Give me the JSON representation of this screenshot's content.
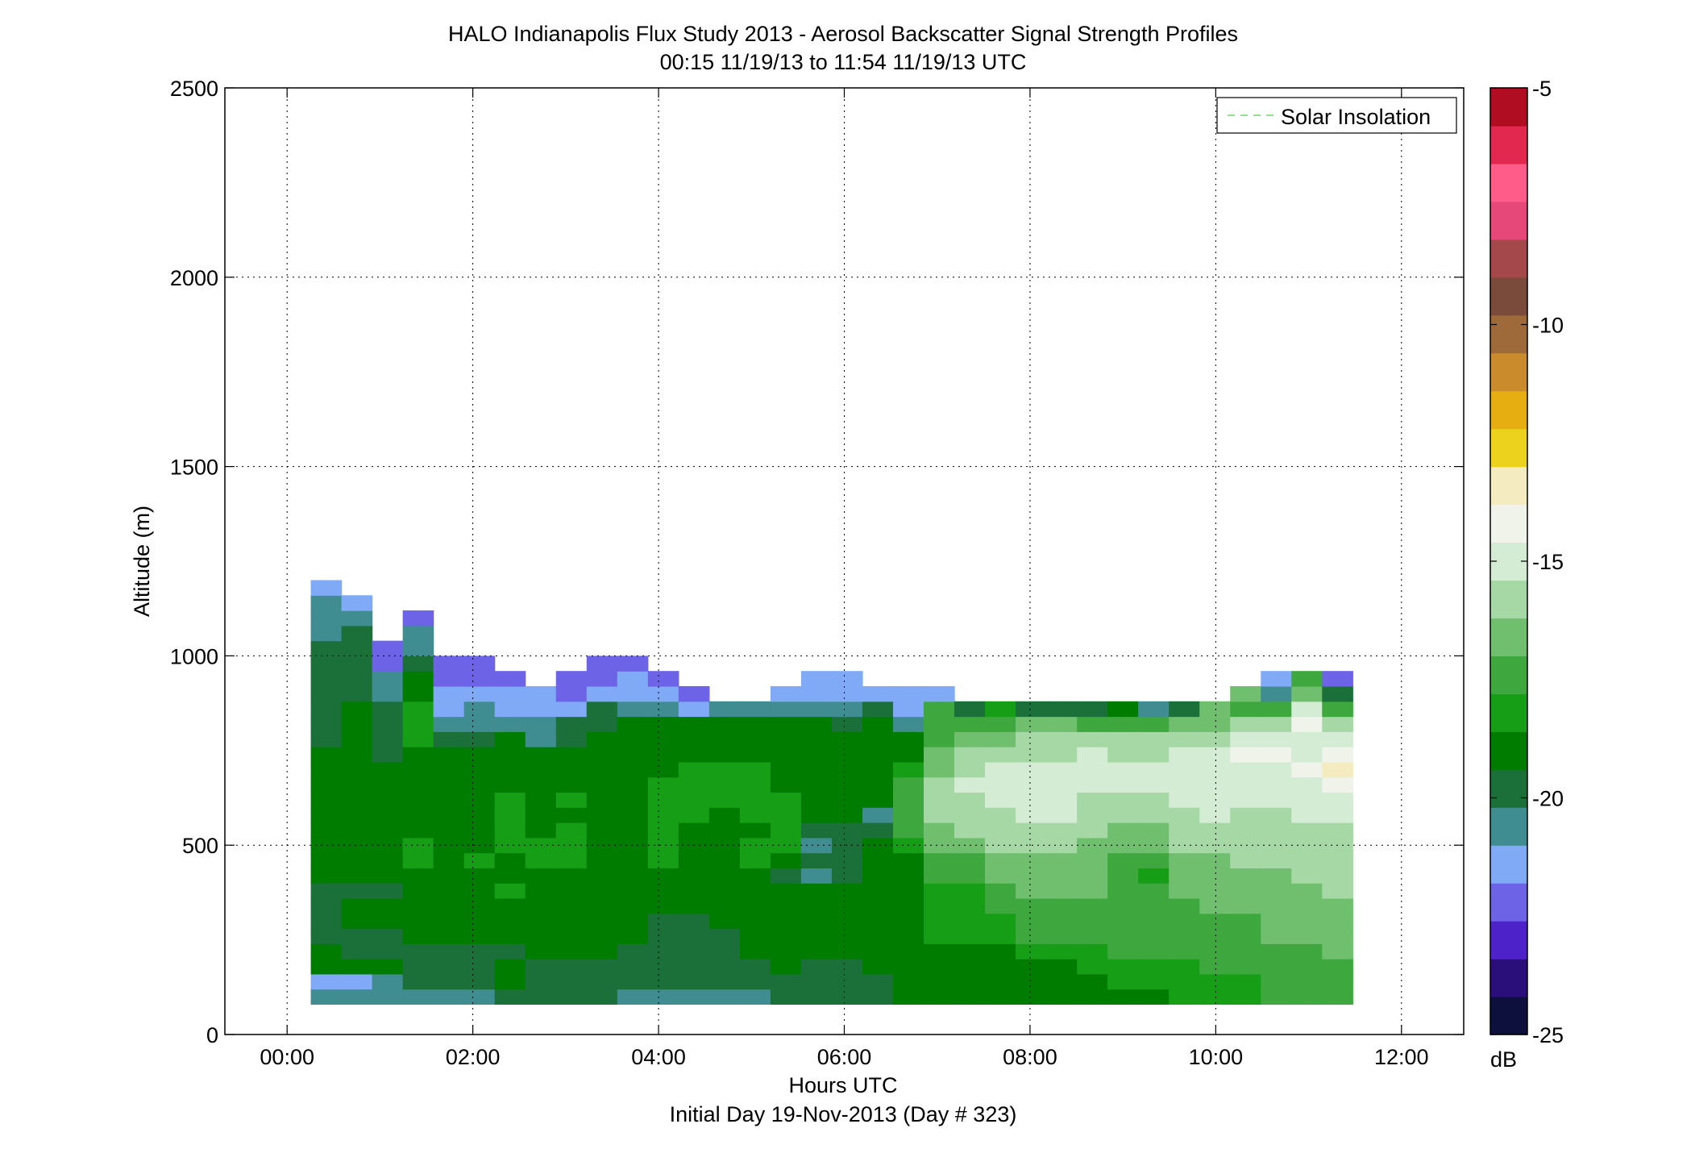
{
  "chart_data": {
    "type": "heatmap",
    "title": "HALO Indianapolis Flux Study 2013 - Aerosol Backscatter Signal Strength Profiles",
    "subtitle": "00:15 11/19/13 to 11:54 11/19/13  UTC",
    "xlabel": "Hours UTC",
    "xlabel2": "Initial Day 19-Nov-2013 (Day # 323)",
    "ylabel": "Altitude (m)",
    "xlim": [
      -0.67,
      12.67
    ],
    "ylim": [
      0,
      2500
    ],
    "x_ticks": [
      0,
      2,
      4,
      6,
      8,
      10,
      12
    ],
    "x_tick_labels": [
      "00:00",
      "02:00",
      "04:00",
      "06:00",
      "08:00",
      "10:00",
      "12:00"
    ],
    "y_ticks": [
      0,
      500,
      1000,
      1500,
      2000,
      2500
    ],
    "y_tick_labels": [
      "0",
      "500",
      "1000",
      "1500",
      "2000",
      "2500"
    ],
    "grid": true,
    "legend": {
      "position": "top-right",
      "entries": [
        "Solar Insolation"
      ],
      "line_color": "#8ae88a"
    },
    "colorbar": {
      "label": "dB",
      "range": [
        -25,
        -5
      ],
      "ticks": [
        -25,
        -20,
        -15,
        -10,
        -5
      ],
      "tick_labels": [
        "-25",
        "-20",
        "-15",
        "-10",
        "-5"
      ],
      "colors": [
        "#0d0f3c",
        "#2a0f7a",
        "#4d22c8",
        "#6c63e6",
        "#80aaf6",
        "#3f8d90",
        "#1a7038",
        "#007d00",
        "#169e16",
        "#3ea83e",
        "#6fbf6f",
        "#a6d8a6",
        "#d4ebd4",
        "#eff3ea",
        "#f4ecc0",
        "#ecd21c",
        "#e6ae10",
        "#c98b2c",
        "#9e6a3a",
        "#7a4a3a",
        "#a4484c",
        "#e6487a",
        "#ff5c8a",
        "#e2284e",
        "#b00d22"
      ]
    },
    "time_bin_hours": 0.33,
    "first_bin_center_hours": 0.42,
    "altitude_bin_m": 40,
    "first_altitude_bin_center_m": 100,
    "top_altitudes_m": [
      1300,
      1260,
      1180,
      1220,
      1180,
      1180,
      1140,
      1100,
      1140,
      1140,
      1140,
      1070,
      960,
      880,
      840,
      800,
      800,
      800,
      760,
      760,
      800,
      800,
      800,
      800,
      760,
      760,
      800,
      800,
      760,
      720,
      760,
      760,
      800,
      800
    ],
    "profiles_db": [
      [
        -20.8,
        -21.2,
        -19.2,
        -19.0,
        -19.6,
        -19.6,
        -19.6,
        -20.0,
        -19.4,
        -19.0,
        -19.4,
        -19.0,
        -19.0,
        -19.0,
        -19.0,
        -19.0,
        -19.4,
        -19.6,
        -19.6,
        -19.6,
        -20.0,
        -20.2,
        -20.2,
        -20.2,
        -20.4,
        -20.6,
        -21.0,
        -21.2
      ],
      [
        -20.8,
        -21.2,
        -19.4,
        -20.0,
        -19.6,
        -19.2,
        -19.2,
        -19.8,
        -19.4,
        -19.0,
        -19.4,
        -19.0,
        -19.0,
        -19.0,
        -19.0,
        -19.0,
        -19.0,
        -19.2,
        -19.2,
        -19.4,
        -19.6,
        -19.6,
        -19.8,
        -19.6,
        -20.0,
        -20.6,
        -21.2
      ],
      [
        -20.6,
        -20.4,
        -19.2,
        -20.0,
        -19.6,
        -19.4,
        -19.4,
        -19.8,
        -19.2,
        -19.0,
        -19.0,
        -19.0,
        -19.0,
        -19.0,
        -19.0,
        -19.0,
        -19.6,
        -19.6,
        -19.6,
        -19.8,
        -20.6,
        -20.8,
        -21.8,
        -22.4
      ],
      [
        -20.6,
        -20.0,
        -19.8,
        -19.6,
        -19.2,
        -18.8,
        -18.6,
        -18.6,
        -18.8,
        -18.4,
        -18.4,
        -18.8,
        -19.0,
        -19.0,
        -18.8,
        -18.6,
        -18.6,
        -18.4,
        -18.4,
        -18.2,
        -19.0,
        -19.2,
        -19.6,
        -20.4,
        -20.6,
        -22.2
      ],
      [
        -20.6,
        -20.0,
        -19.8,
        -19.6,
        -19.4,
        -19.2,
        -19.2,
        -19.0,
        -18.8,
        -19.0,
        -18.8,
        -18.8,
        -19.0,
        -19.0,
        -19.0,
        -18.8,
        -19.0,
        -19.6,
        -20.8,
        -21.4,
        -21.6,
        -21.8,
        -21.8
      ],
      [
        -20.6,
        -19.8,
        -19.8,
        -19.6,
        -19.0,
        -19.0,
        -18.8,
        -18.8,
        -18.6,
        -18.4,
        -18.6,
        -18.8,
        -19.0,
        -19.0,
        -19.0,
        -19.0,
        -19.4,
        -20.0,
        -20.4,
        -20.6,
        -21.6,
        -21.8,
        -21.8
      ],
      [
        -20.0,
        -19.2,
        -19.0,
        -19.8,
        -19.4,
        -19.0,
        -18.8,
        -18.4,
        -18.6,
        -18.6,
        -18.4,
        -18.2,
        -18.2,
        -18.2,
        -18.6,
        -19.0,
        -19.2,
        -19.2,
        -21.0,
        -21.4,
        -21.6,
        -22.2
      ],
      [
        -19.6,
        -19.6,
        -19.6,
        -19.0,
        -19.0,
        -19.0,
        -19.0,
        -18.6,
        -18.8,
        -18.2,
        -18.4,
        -18.6,
        -18.8,
        -18.8,
        -18.8,
        -19.2,
        -19.0,
        -20.4,
        -21.0,
        -21.4,
        -21.6
      ],
      [
        -19.6,
        -19.6,
        -19.6,
        -19.2,
        -19.0,
        -19.0,
        -18.8,
        -18.6,
        -18.8,
        -18.2,
        -18.0,
        -18.4,
        -18.8,
        -18.4,
        -19.4,
        -18.8,
        -18.8,
        -19.6,
        -19.8,
        -21.6,
        -21.8,
        -22.2
      ],
      [
        -20.0,
        -19.6,
        -19.8,
        -19.2,
        -19.0,
        -19.0,
        -18.8,
        -18.8,
        -18.8,
        -18.8,
        -18.6,
        -18.8,
        -19.0,
        -19.0,
        -18.8,
        -19.0,
        -19.2,
        -19.2,
        -19.6,
        -20.2,
        -21.2,
        -21.8,
        -22.2
      ],
      [
        -20.6,
        -20.2,
        -20.0,
        -19.6,
        -19.2,
        -19.2,
        -19.0,
        -18.8,
        -18.8,
        -18.6,
        -18.6,
        -18.6,
        -18.8,
        -18.8,
        -18.8,
        -19.0,
        -19.2,
        -19.0,
        -19.0,
        -20.6,
        -21.2,
        -21.6,
        -22.2
      ],
      [
        -20.6,
        -19.6,
        -20.2,
        -19.8,
        -19.6,
        -19.6,
        -19.4,
        -19.4,
        -18.6,
        -18.4,
        -18.2,
        -18.0,
        -18.0,
        -18.0,
        -18.4,
        -18.6,
        -18.8,
        -19.0,
        -19.0,
        -20.8,
        -21.2,
        -22.0
      ],
      [
        -20.6,
        -19.6,
        -19.8,
        -19.8,
        -19.6,
        -19.6,
        -19.4,
        -19.2,
        -19.0,
        -19.0,
        -18.8,
        -18.6,
        -18.2,
        -18.2,
        -18.4,
        -18.4,
        -18.8,
        -19.0,
        -19.0,
        -21.2,
        -21.8
      ],
      [
        -20.6,
        -20.0,
        -19.6,
        -19.6,
        -19.6,
        -19.4,
        -19.4,
        -19.2,
        -19.0,
        -19.0,
        -18.8,
        -18.8,
        -18.8,
        -18.4,
        -18.4,
        -18.4,
        -19.0,
        -19.0,
        -19.0,
        -21.0
      ],
      [
        -20.6,
        -19.6,
        -19.6,
        -19.4,
        -19.4,
        -19.2,
        -19.0,
        -19.0,
        -18.8,
        -18.4,
        -18.4,
        -18.6,
        -18.4,
        -18.2,
        -18.2,
        -18.2,
        -18.8,
        -18.8,
        -18.8,
        -21.0
      ],
      [
        -19.6,
        -19.8,
        -19.4,
        -19.4,
        -19.2,
        -19.0,
        -19.0,
        -19.0,
        -20.2,
        -18.8,
        -18.4,
        -18.4,
        -18.2,
        -18.2,
        -18.6,
        -18.8,
        -19.0,
        -19.0,
        -19.2,
        -20.6,
        -21.6
      ],
      [
        -19.6,
        -19.8,
        -19.6,
        -19.4,
        -19.2,
        -19.0,
        -19.0,
        -19.0,
        -20.6,
        -19.6,
        -21.0,
        -20.0,
        -19.0,
        -18.8,
        -18.8,
        -19.0,
        -19.0,
        -19.0,
        -19.2,
        -20.8,
        -21.4,
        -21.4
      ],
      [
        -19.6,
        -19.8,
        -19.6,
        -19.4,
        -19.2,
        -19.0,
        -19.0,
        -19.0,
        -20.2,
        -19.6,
        -19.6,
        -19.8,
        -19.2,
        -19.0,
        -19.0,
        -19.2,
        -19.2,
        -19.2,
        -20.2,
        -20.6,
        -21.4,
        -21.4
      ],
      [
        -19.6,
        -19.6,
        -19.4,
        -19.4,
        -19.4,
        -19.2,
        -19.2,
        -19.0,
        -18.8,
        -18.8,
        -19.0,
        -20.2,
        -20.4,
        -18.6,
        -18.6,
        -18.8,
        -18.8,
        -19.0,
        -19.4,
        -20.0,
        -21.4
      ],
      [
        -19.0,
        -19.0,
        -19.0,
        -19.0,
        -19.0,
        -19.0,
        -19.2,
        -19.2,
        -19.0,
        -19.2,
        -18.4,
        -17.8,
        -17.4,
        -17.6,
        -17.6,
        -18.0,
        -18.6,
        -19.0,
        -20.4,
        -21.2,
        -21.6
      ],
      [
        -19.0,
        -19.0,
        -18.8,
        -18.6,
        -18.4,
        -18.4,
        -18.2,
        -18.0,
        -17.8,
        -17.4,
        -16.8,
        -16.4,
        -16.2,
        -16.0,
        -16.0,
        -16.4,
        -17.0,
        -17.2,
        -17.4,
        -17.6,
        -21.4
      ],
      [
        -19.0,
        -19.0,
        -18.8,
        -18.6,
        -18.4,
        -18.4,
        -18.2,
        -18.0,
        -17.6,
        -17.2,
        -16.6,
        -16.2,
        -15.8,
        -15.6,
        -15.4,
        -15.6,
        -16.0,
        -16.6,
        -17.2,
        -20.2
      ],
      [
        -19.0,
        -19.0,
        -18.8,
        -18.6,
        -18.2,
        -18.0,
        -17.8,
        -17.4,
        -17.0,
        -16.6,
        -16.2,
        -16.0,
        -15.6,
        -15.4,
        -15.4,
        -15.2,
        -15.8,
        -16.4,
        -17.2,
        -18.4
      ],
      [
        -19.0,
        -19.0,
        -18.6,
        -18.2,
        -17.8,
        -17.6,
        -17.2,
        -17.0,
        -16.8,
        -16.4,
        -16.0,
        -15.8,
        -15.4,
        -15.2,
        -14.8,
        -15.2,
        -15.6,
        -16.0,
        -17.0,
        -19.6
      ],
      [
        -19.0,
        -19.0,
        -18.6,
        -18.2,
        -17.8,
        -17.4,
        -17.2,
        -17.0,
        -16.8,
        -16.6,
        -16.2,
        -15.8,
        -15.4,
        -15.2,
        -14.8,
        -15.0,
        -15.6,
        -16.0,
        -17.0,
        -19.8
      ],
      [
        -18.8,
        -18.6,
        -18.2,
        -18.0,
        -17.8,
        -17.6,
        -17.4,
        -17.0,
        -17.0,
        -16.8,
        -16.4,
        -16.0,
        -15.8,
        -15.6,
        -15.2,
        -15.0,
        -15.4,
        -16.0,
        -17.2,
        -20.0
      ],
      [
        -18.6,
        -18.4,
        -18.0,
        -17.6,
        -17.6,
        -17.4,
        -17.6,
        -17.8,
        -17.6,
        -17.2,
        -16.8,
        -16.4,
        -16.0,
        -15.8,
        -15.4,
        -15.2,
        -15.6,
        -16.2,
        -17.4,
        -18.8
      ],
      [
        -18.6,
        -18.4,
        -18.0,
        -17.8,
        -17.6,
        -17.4,
        -17.6,
        -17.8,
        -18.0,
        -17.8,
        -17.0,
        -16.4,
        -16.0,
        -15.6,
        -15.2,
        -15.0,
        -15.6,
        -16.0,
        -17.2,
        -20.4
      ],
      [
        -18.4,
        -18.2,
        -18.0,
        -17.8,
        -17.6,
        -17.4,
        -17.2,
        -17.0,
        -16.8,
        -16.6,
        -16.2,
        -16.0,
        -15.6,
        -15.4,
        -15.0,
        -15.0,
        -15.4,
        -15.8,
        -16.6,
        -19.8
      ],
      [
        -18.4,
        -18.2,
        -17.8,
        -17.6,
        -17.4,
        -17.2,
        -17.0,
        -16.8,
        -16.6,
        -16.4,
        -16.0,
        -15.8,
        -15.4,
        -15.2,
        -15.0,
        -14.8,
        -15.0,
        -15.6,
        -16.4,
        -17.0
      ],
      [
        -18.2,
        -18.0,
        -17.8,
        -17.6,
        -17.4,
        -17.2,
        -17.0,
        -16.8,
        -16.6,
        -16.2,
        -16.0,
        -15.8,
        -15.6,
        -15.4,
        -15.2,
        -15.0,
        -14.6,
        -15.2,
        -16.0,
        -17.2,
        -17.0
      ],
      [
        -17.8,
        -17.6,
        -17.4,
        -17.2,
        -17.0,
        -16.8,
        -16.6,
        -16.6,
        -16.4,
        -16.2,
        -16.0,
        -15.8,
        -15.6,
        -15.4,
        -15.2,
        -14.8,
        -14.4,
        -15.0,
        -15.8,
        -17.2,
        -20.4,
        -21.6
      ],
      [
        -17.8,
        -17.6,
        -17.4,
        -17.2,
        -17.0,
        -16.8,
        -16.6,
        -16.4,
        -16.2,
        -16.2,
        -15.8,
        -15.6,
        -15.4,
        -15.2,
        -14.8,
        -13.8,
        -14.8,
        -15.0,
        -14.4,
        -15.4,
        -16.6,
        -17.4
      ],
      [
        -17.6,
        -17.4,
        -17.2,
        -17.0,
        -16.8,
        -16.6,
        -16.4,
        -16.2,
        -16.0,
        -16.0,
        -15.8,
        -15.6,
        -15.4,
        -15.0,
        -14.6,
        -13.6,
        -14.0,
        -14.8,
        -15.6,
        -17.8,
        -19.8,
        -21.8
      ]
    ]
  }
}
